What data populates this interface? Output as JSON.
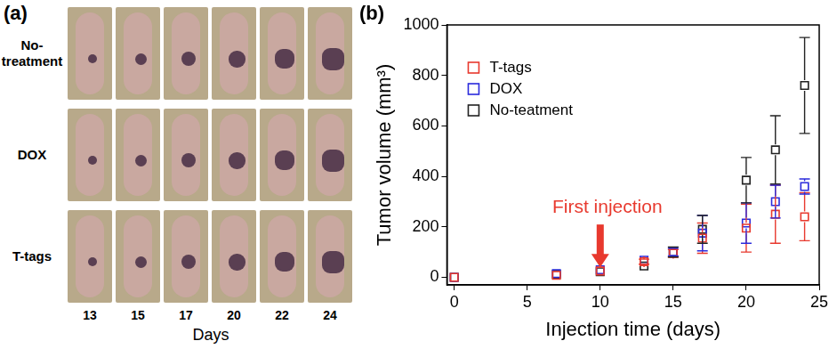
{
  "chart_data": {
    "type": "scatter",
    "title": "(b)",
    "x_label": "Injection time (days)",
    "y_label": "Tumor volume (mm³)",
    "x": [
      0,
      7,
      10,
      13,
      15,
      17,
      20,
      22,
      24
    ],
    "series": [
      {
        "name": "T-tags",
        "color": "#e8392e",
        "marker": "square",
        "values": [
          0,
          8,
          25,
          62,
          95,
          155,
          195,
          250,
          240
        ],
        "error": [
          null,
          null,
          null,
          10,
          15,
          60,
          95,
          115,
          95
        ]
      },
      {
        "name": "DOX",
        "color": "#2b2bdc",
        "marker": "square",
        "values": [
          0,
          15,
          30,
          68,
          100,
          175,
          215,
          300,
          360
        ],
        "error": [
          null,
          null,
          null,
          null,
          15,
          70,
          80,
          65,
          30
        ]
      },
      {
        "name": "No-teatment",
        "color": "#222222",
        "marker": "square",
        "values": [
          0,
          12,
          22,
          45,
          100,
          190,
          385,
          505,
          760
        ],
        "error": [
          null,
          null,
          null,
          null,
          20,
          55,
          90,
          135,
          190
        ]
      }
    ],
    "xlim": [
      -0.5,
      25
    ],
    "xticks": [
      0,
      5,
      10,
      15,
      20,
      25
    ],
    "ylim": [
      -30,
      1000
    ],
    "yticks": [
      0,
      200,
      400,
      600,
      800,
      1000
    ],
    "grid": false,
    "legend": "upper left",
    "annotations": [
      {
        "text": "First injection",
        "x": 10,
        "y": 40,
        "color": "#e8392e"
      }
    ]
  },
  "photo_panel": {
    "label": "(a)",
    "row_labels": [
      "No-\ntreatment",
      "DOX",
      "T-tags"
    ],
    "column_labels": [
      13,
      15,
      17,
      20,
      22,
      24
    ],
    "x_label": "Days"
  }
}
